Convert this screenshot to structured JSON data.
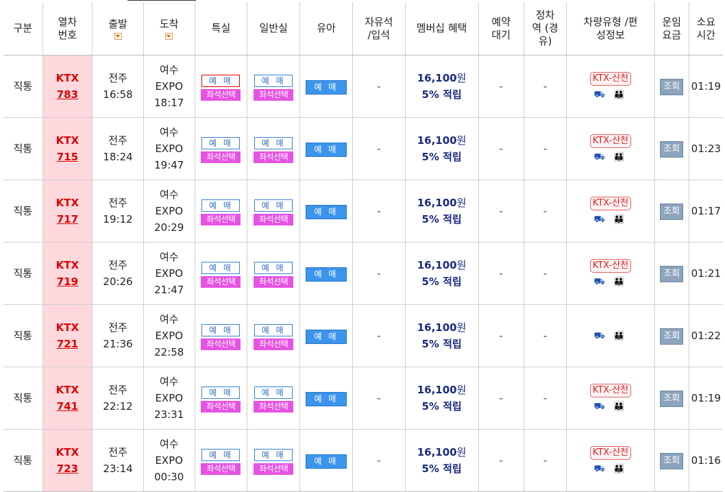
{
  "headers": {
    "type": "구분",
    "train_no": "열차 번호",
    "departure": "출발",
    "arrival": "도착",
    "first_class": "특실",
    "economy": "일반실",
    "infant": "유아",
    "free_seat": "자유석 /입석",
    "membership": "멤버십 혜택",
    "reservation_wait": "예약 대기",
    "stop_station": "정차 역 (경유)",
    "vehicle_type": "차량유형 /편성정보",
    "fare": "운임 요금",
    "duration": "소요 시간"
  },
  "labels": {
    "buy": "예 매",
    "seat_select": "좌석선택",
    "query": "조회",
    "dash": "-",
    "ktx_sancheon": "KTX-산천",
    "points": "5% 적립",
    "won": "원"
  },
  "rows": [
    {
      "type": "직통",
      "train_prefix": "KTX",
      "train_num": "783",
      "dep_station": "전주",
      "dep_time": "16:58",
      "arr_station_1": "여수",
      "arr_station_2": "EXPO",
      "arr_time": "18:17",
      "price": "16,100",
      "vehicle": "KTX-산천",
      "icons": "⛟ 👪",
      "duration": "01:19"
    },
    {
      "type": "직통",
      "train_prefix": "KTX",
      "train_num": "715",
      "dep_station": "전주",
      "dep_time": "18:24",
      "arr_station_1": "여수",
      "arr_station_2": "EXPO",
      "arr_time": "19:47",
      "price": "16,100",
      "vehicle": "KTX-산천",
      "icons": "⛟ 👪",
      "duration": "01:23"
    },
    {
      "type": "직통",
      "train_prefix": "KTX",
      "train_num": "717",
      "dep_station": "전주",
      "dep_time": "19:12",
      "arr_station_1": "여수",
      "arr_station_2": "EXPO",
      "arr_time": "20:29",
      "price": "16,100",
      "vehicle": "KTX-산천",
      "icons": "⛟ 👪",
      "duration": "01:17"
    },
    {
      "type": "직통",
      "train_prefix": "KTX",
      "train_num": "719",
      "dep_station": "전주",
      "dep_time": "20:26",
      "arr_station_1": "여수",
      "arr_station_2": "EXPO",
      "arr_time": "21:47",
      "price": "16,100",
      "vehicle": "KTX-산천",
      "icons": "⛟ 👪",
      "duration": "01:21"
    },
    {
      "type": "직통",
      "train_prefix": "KTX",
      "train_num": "721",
      "dep_station": "전주",
      "dep_time": "21:36",
      "arr_station_1": "여수",
      "arr_station_2": "EXPO",
      "arr_time": "22:58",
      "price": "16,100",
      "vehicle": "",
      "icons": "⛟ 👪",
      "duration": "01:22"
    },
    {
      "type": "직통",
      "train_prefix": "KTX",
      "train_num": "741",
      "dep_station": "전주",
      "dep_time": "22:12",
      "arr_station_1": "여수",
      "arr_station_2": "EXPO",
      "arr_time": "23:31",
      "price": "16,100",
      "vehicle": "KTX-산천",
      "icons": "⛟ 👪",
      "duration": "01:19"
    },
    {
      "type": "직통",
      "train_prefix": "KTX",
      "train_num": "723",
      "dep_station": "전주",
      "dep_time": "23:14",
      "arr_station_1": "여수",
      "arr_station_2": "EXPO",
      "arr_time": "00:30",
      "price": "16,100",
      "vehicle": "KTX-산천",
      "icons": "⛟ 👪",
      "duration": "01:16"
    }
  ]
}
